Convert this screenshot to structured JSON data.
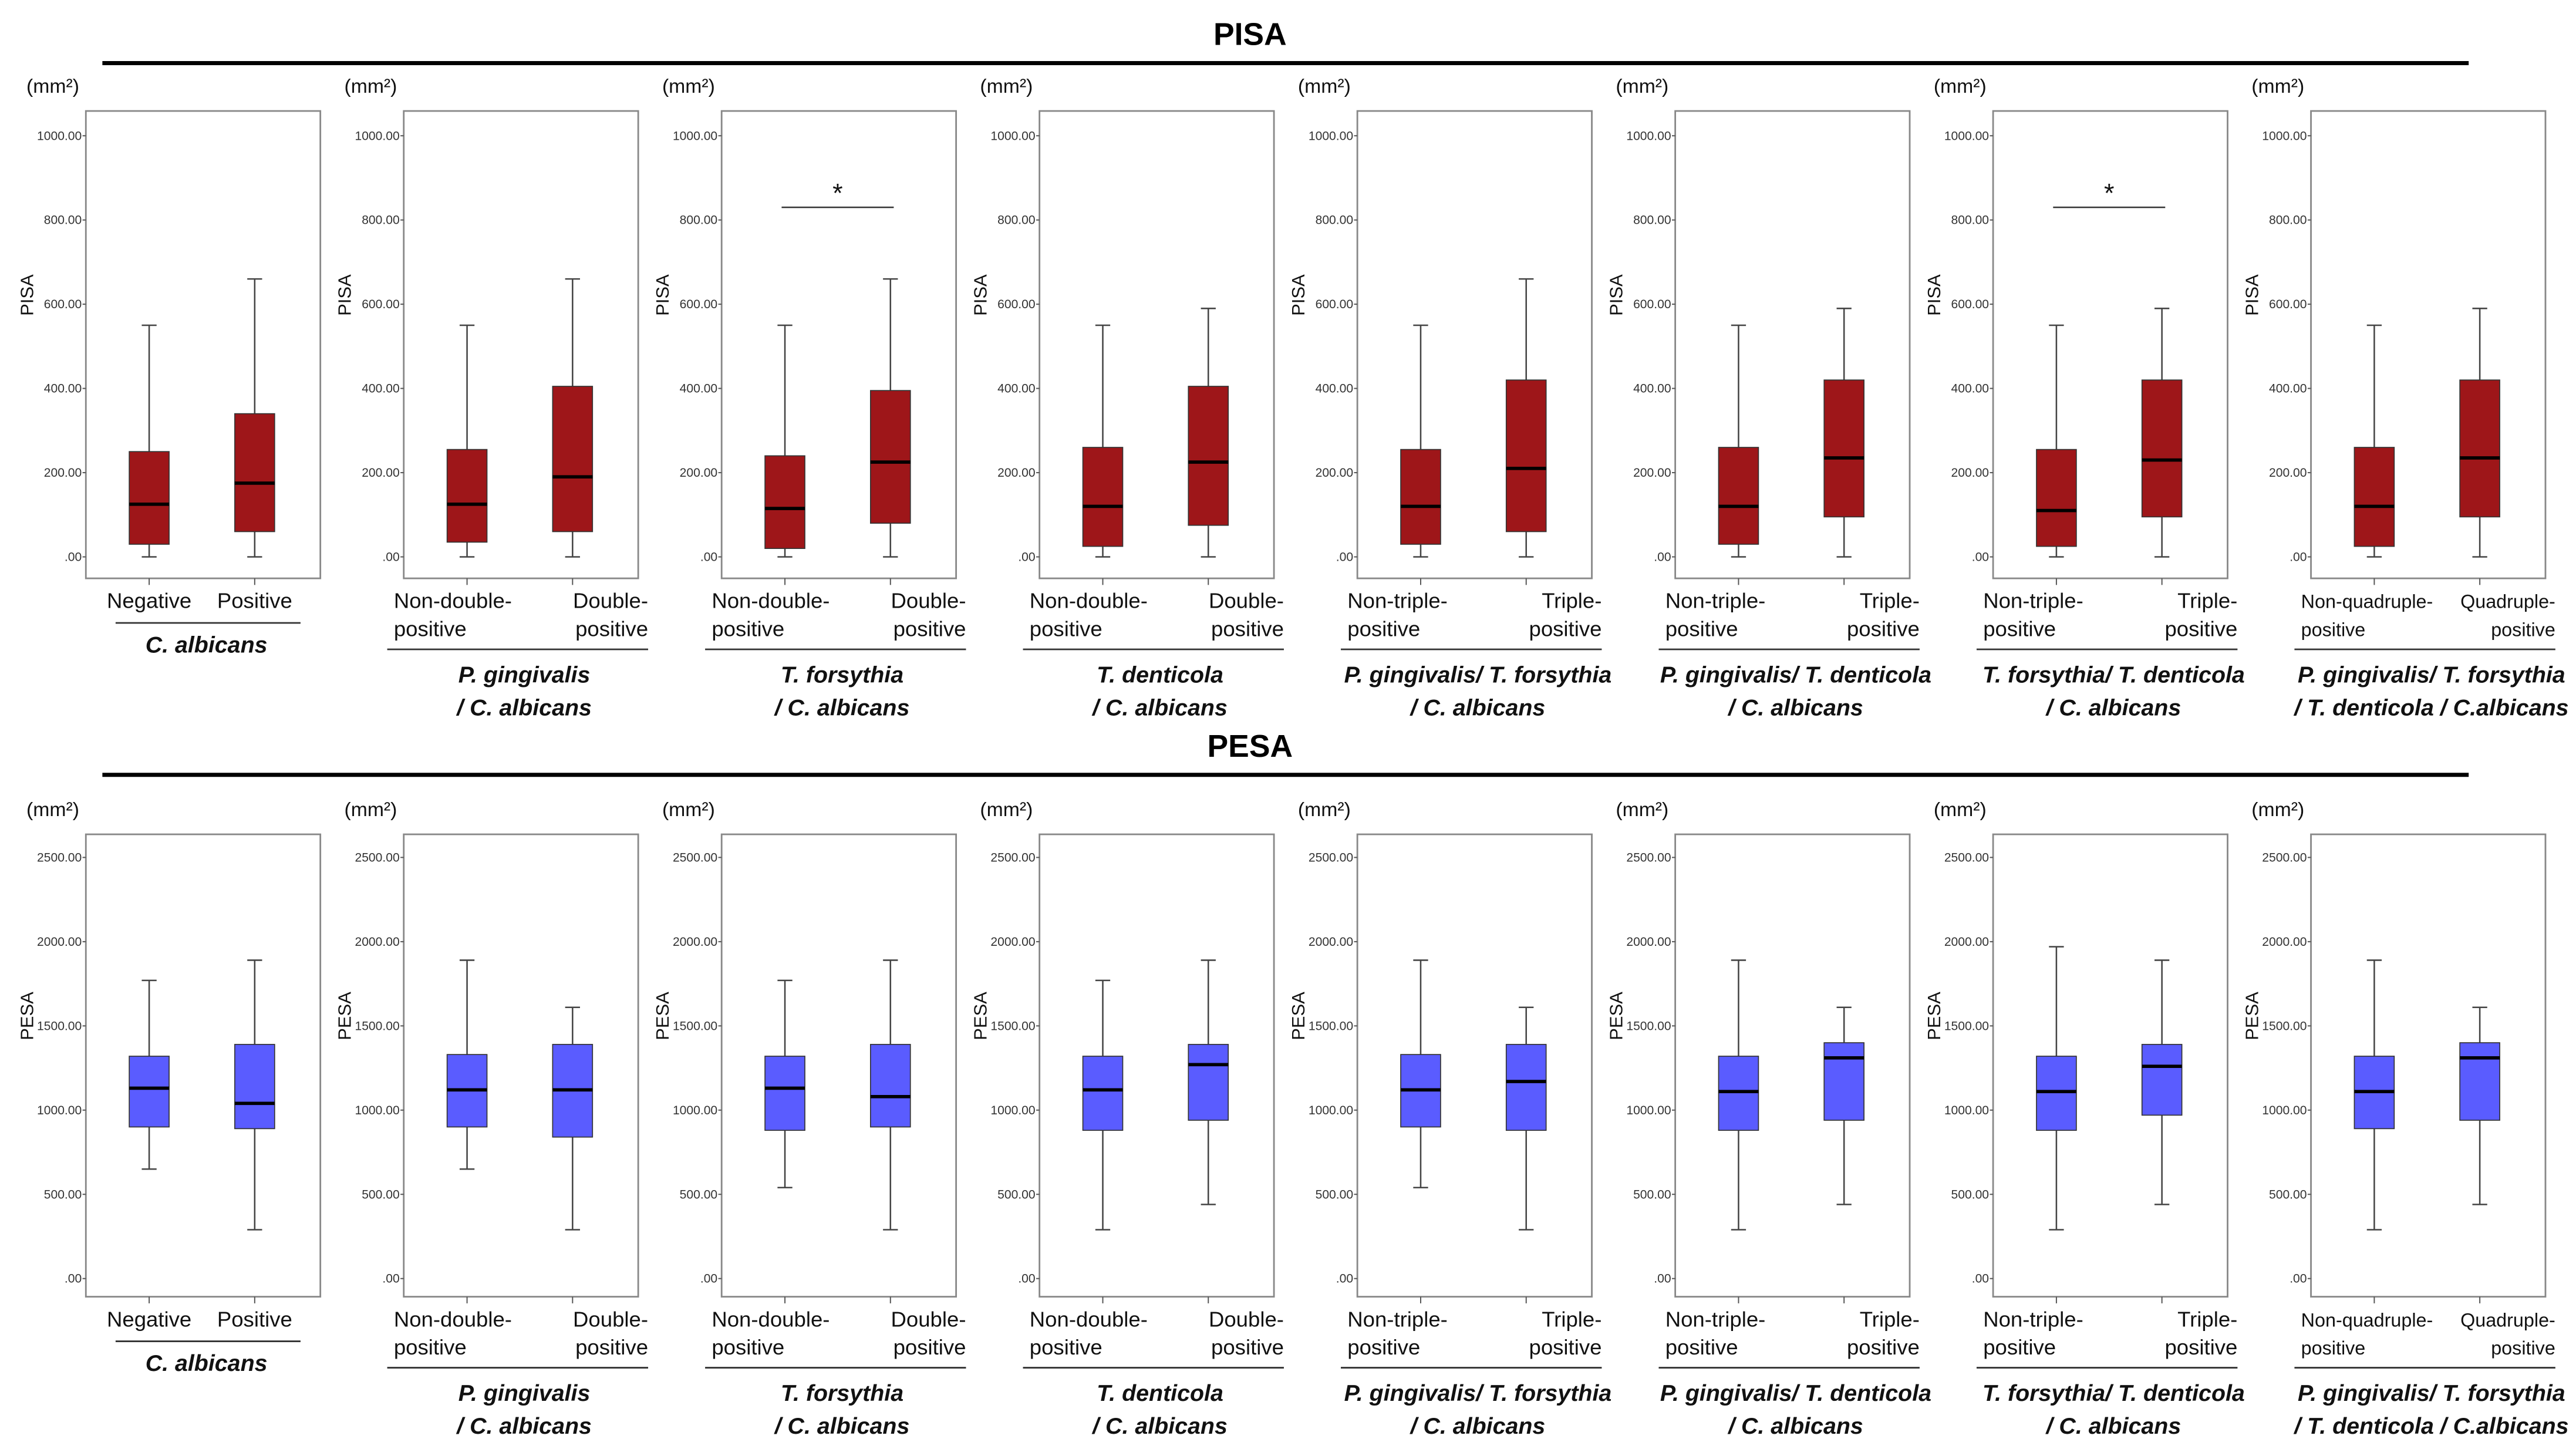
{
  "chart_data": [
    {
      "type": "box",
      "title": "PISA",
      "ylabel": "PISA",
      "unit": "(mm²)",
      "ylim": [
        0,
        1000
      ],
      "yticks": [
        0,
        200,
        400,
        600,
        800,
        1000
      ],
      "ytick_labels": [
        ".00",
        "200.00",
        "400.00",
        "600.00",
        "800.00",
        "1000.00"
      ],
      "color": "#9e1619",
      "panels": [
        {
          "group": [
            "C. albicans"
          ],
          "categories": [
            [
              "Negative"
            ],
            [
              "Positive"
            ]
          ],
          "boxes": [
            [
              0,
              30,
              125,
              250,
              550
            ],
            [
              0,
              60,
              175,
              340,
              660
            ]
          ],
          "significance": ""
        },
        {
          "group": [
            "P. gingivalis",
            "/ C. albicans"
          ],
          "categories": [
            [
              "Non-double-",
              "positive"
            ],
            [
              "Double-",
              "positive"
            ]
          ],
          "boxes": [
            [
              0,
              35,
              125,
              255,
              550
            ],
            [
              0,
              60,
              190,
              405,
              660
            ]
          ],
          "significance": ""
        },
        {
          "group": [
            "T. forsythia",
            "/ C. albicans"
          ],
          "categories": [
            [
              "Non-double-",
              "positive"
            ],
            [
              "Double-",
              "positive"
            ]
          ],
          "boxes": [
            [
              0,
              20,
              115,
              240,
              550
            ],
            [
              0,
              80,
              225,
              395,
              660
            ]
          ],
          "significance": "*"
        },
        {
          "group": [
            "T. denticola",
            "/ C. albicans"
          ],
          "categories": [
            [
              "Non-double-",
              "positive"
            ],
            [
              "Double-",
              "positive"
            ]
          ],
          "boxes": [
            [
              0,
              25,
              120,
              260,
              550
            ],
            [
              0,
              75,
              225,
              405,
              590
            ]
          ],
          "significance": ""
        },
        {
          "group": [
            "P. gingivalis/ T. forsythia",
            "/ C. albicans"
          ],
          "categories": [
            [
              "Non-triple-",
              "positive"
            ],
            [
              "Triple-",
              "positive"
            ]
          ],
          "boxes": [
            [
              0,
              30,
              120,
              255,
              550
            ],
            [
              0,
              60,
              210,
              420,
              660
            ]
          ],
          "significance": ""
        },
        {
          "group": [
            "P. gingivalis/ T. denticola",
            "/ C. albicans"
          ],
          "categories": [
            [
              "Non-triple-",
              "positive"
            ],
            [
              "Triple-",
              "positive"
            ]
          ],
          "boxes": [
            [
              0,
              30,
              120,
              260,
              550
            ],
            [
              0,
              95,
              235,
              420,
              590
            ]
          ],
          "significance": ""
        },
        {
          "group": [
            "T. forsythia/ T. denticola",
            "/ C. albicans"
          ],
          "categories": [
            [
              "Non-triple-",
              "positive"
            ],
            [
              "Triple-",
              "positive"
            ]
          ],
          "boxes": [
            [
              0,
              25,
              110,
              255,
              550
            ],
            [
              0,
              95,
              230,
              420,
              590
            ]
          ],
          "significance": "*"
        },
        {
          "group": [
            "P. gingivalis/ T. forsythia",
            "/ T. denticola / C.albicans"
          ],
          "categories": [
            [
              "Non-quadruple-",
              "positive"
            ],
            [
              "Quadruple-",
              "positive"
            ]
          ],
          "boxes": [
            [
              0,
              25,
              120,
              260,
              550
            ],
            [
              0,
              95,
              235,
              420,
              590
            ]
          ],
          "significance": ""
        }
      ]
    },
    {
      "type": "box",
      "title": "PESA",
      "ylabel": "PESA",
      "unit": "(mm²)",
      "ylim": [
        0,
        2500
      ],
      "yticks": [
        0,
        500,
        1000,
        1500,
        2000,
        2500
      ],
      "ytick_labels": [
        ".00",
        "500.00",
        "1000.00",
        "1500.00",
        "2000.00",
        "2500.00"
      ],
      "color": "#5a5cff",
      "panels": [
        {
          "group": [
            "C. albicans"
          ],
          "categories": [
            [
              "Negative"
            ],
            [
              "Positive"
            ]
          ],
          "boxes": [
            [
              650,
              900,
              1130,
              1320,
              1770
            ],
            [
              290,
              890,
              1040,
              1390,
              1890
            ]
          ],
          "significance": ""
        },
        {
          "group": [
            "P. gingivalis",
            "/ C. albicans"
          ],
          "categories": [
            [
              "Non-double-",
              "positive"
            ],
            [
              "Double-",
              "positive"
            ]
          ],
          "boxes": [
            [
              650,
              900,
              1120,
              1330,
              1890
            ],
            [
              290,
              840,
              1120,
              1390,
              1610
            ]
          ],
          "significance": ""
        },
        {
          "group": [
            "T. forsythia",
            "/ C. albicans"
          ],
          "categories": [
            [
              "Non-double-",
              "positive"
            ],
            [
              "Double-",
              "positive"
            ]
          ],
          "boxes": [
            [
              540,
              880,
              1130,
              1320,
              1770
            ],
            [
              290,
              900,
              1080,
              1390,
              1890
            ]
          ],
          "significance": ""
        },
        {
          "group": [
            "T. denticola",
            "/ C. albicans"
          ],
          "categories": [
            [
              "Non-double-",
              "positive"
            ],
            [
              "Double-",
              "positive"
            ]
          ],
          "boxes": [
            [
              290,
              880,
              1120,
              1320,
              1770
            ],
            [
              440,
              940,
              1270,
              1390,
              1890
            ]
          ],
          "significance": ""
        },
        {
          "group": [
            "P. gingivalis/ T. forsythia",
            "/ C. albicans"
          ],
          "categories": [
            [
              "Non-triple-",
              "positive"
            ],
            [
              "Triple-",
              "positive"
            ]
          ],
          "boxes": [
            [
              540,
              900,
              1120,
              1330,
              1890
            ],
            [
              290,
              880,
              1170,
              1390,
              1610
            ]
          ],
          "significance": ""
        },
        {
          "group": [
            "P. gingivalis/ T. denticola",
            "/ C. albicans"
          ],
          "categories": [
            [
              "Non-triple-",
              "positive"
            ],
            [
              "Triple-",
              "positive"
            ]
          ],
          "boxes": [
            [
              290,
              880,
              1110,
              1320,
              1890
            ],
            [
              440,
              940,
              1310,
              1400,
              1610
            ]
          ],
          "significance": ""
        },
        {
          "group": [
            "T. forsythia/ T. denticola",
            "/ C. albicans"
          ],
          "categories": [
            [
              "Non-triple-",
              "positive"
            ],
            [
              "Triple-",
              "positive"
            ]
          ],
          "boxes": [
            [
              290,
              880,
              1110,
              1320,
              1970
            ],
            [
              440,
              970,
              1260,
              1390,
              1890
            ]
          ],
          "significance": ""
        },
        {
          "group": [
            "P. gingivalis/ T. forsythia",
            "/ T. denticola / C.albicans"
          ],
          "categories": [
            [
              "Non-quadruple-",
              "positive"
            ],
            [
              "Quadruple-",
              "positive"
            ]
          ],
          "boxes": [
            [
              290,
              890,
              1110,
              1320,
              1890
            ],
            [
              440,
              940,
              1310,
              1400,
              1610
            ]
          ],
          "significance": ""
        }
      ]
    }
  ]
}
